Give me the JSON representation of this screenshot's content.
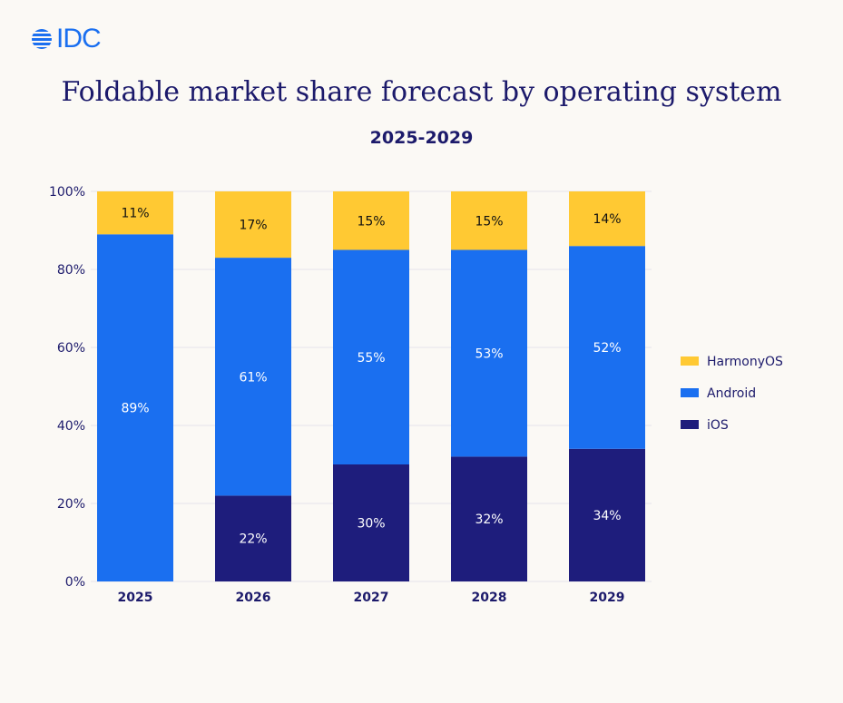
{
  "logo": "IDC",
  "chart_data": {
    "type": "bar",
    "stacked": true,
    "title": "Foldable market share forecast by operating system",
    "subtitle": "2025-2029",
    "categories": [
      "2025",
      "2026",
      "2027",
      "2028",
      "2029"
    ],
    "series": [
      {
        "name": "iOS",
        "color": "#1e1d7c",
        "values": [
          0,
          22,
          30,
          32,
          34
        ]
      },
      {
        "name": "Android",
        "color": "#1a6ff0",
        "values": [
          89,
          61,
          55,
          53,
          52
        ]
      },
      {
        "name": "HarmonyOS",
        "color": "#ffc933",
        "values": [
          11,
          17,
          15,
          15,
          14
        ]
      }
    ],
    "yticks": [
      "0%",
      "20%",
      "40%",
      "60%",
      "80%",
      "100%"
    ],
    "ylim": [
      0,
      100
    ],
    "grid": true,
    "legend_position": "right"
  }
}
